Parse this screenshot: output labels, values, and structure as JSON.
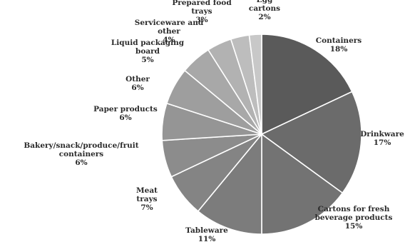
{
  "chart_data": {
    "type": "pie",
    "title": "",
    "legend": "none",
    "slices": [
      {
        "label": "Containers",
        "value": 18,
        "value_label": "18%",
        "color": "#5a5a5a"
      },
      {
        "label": "Drinkware",
        "value": 17,
        "value_label": "17%",
        "color": "#6b6b6b"
      },
      {
        "label": "Cartons for fresh beverage products",
        "value": 15,
        "value_label": "15%",
        "color": "#737373"
      },
      {
        "label": "Tableware",
        "value": 11,
        "value_label": "11%",
        "color": "#7c7c7c"
      },
      {
        "label": "Meat trays",
        "value": 7,
        "value_label": "7%",
        "color": "#848484"
      },
      {
        "label": "Bakery/snack/produce/fruit containers",
        "value": 6,
        "value_label": "6%",
        "color": "#8c8c8c"
      },
      {
        "label": "Paper products",
        "value": 6,
        "value_label": "6%",
        "color": "#959595"
      },
      {
        "label": "Other",
        "value": 6,
        "value_label": "6%",
        "color": "#9e9e9e"
      },
      {
        "label": "Liquid packaging board",
        "value": 5,
        "value_label": "5%",
        "color": "#a8a8a8"
      },
      {
        "label": "Serviceware and other",
        "value": 4,
        "value_label": "4%",
        "color": "#b2b2b2"
      },
      {
        "label": "Prepared food trays",
        "value": 3,
        "value_label": "3%",
        "color": "#bdbdbd"
      },
      {
        "label": "Egg cartons",
        "value": 2,
        "value_label": "2%",
        "color": "#c8c8c8"
      }
    ]
  }
}
